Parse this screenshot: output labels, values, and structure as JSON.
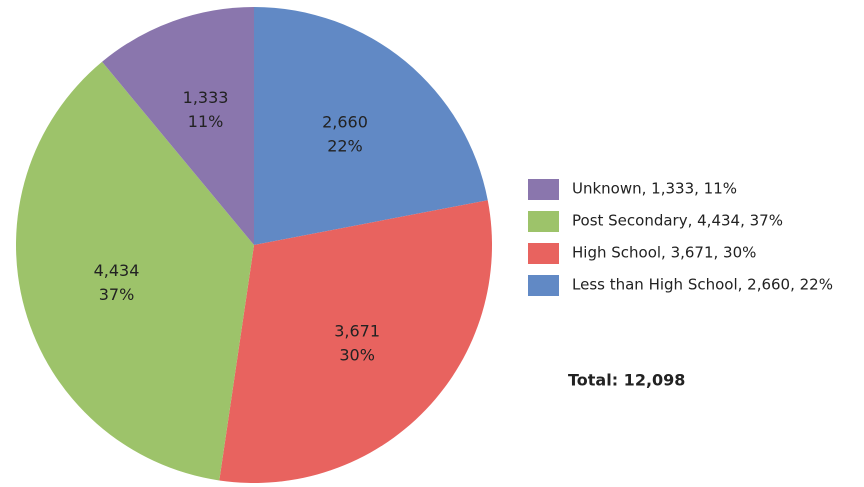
{
  "chart_data": {
    "type": "pie",
    "categories": [
      "Less than High School",
      "High School",
      "Post Secondary",
      "Unknown"
    ],
    "values": [
      2660,
      3671,
      4434,
      1333
    ],
    "value_labels": [
      "2,660",
      "3,671",
      "4,434",
      "1,333"
    ],
    "percentage_labels": [
      "22%",
      "30%",
      "37%",
      "11%"
    ],
    "legend_labels": [
      "Less than High School, 2,660, 22%",
      "High School, 3,671, 30%",
      "Post Secondary, 4,434, 37%",
      "Unknown, 1,333, 11%"
    ],
    "colors": [
      "#6189c5",
      "#e8635f",
      "#9dc36a",
      "#8a76ad"
    ],
    "legend_position": "right",
    "annotation": "Total: 12,098"
  }
}
